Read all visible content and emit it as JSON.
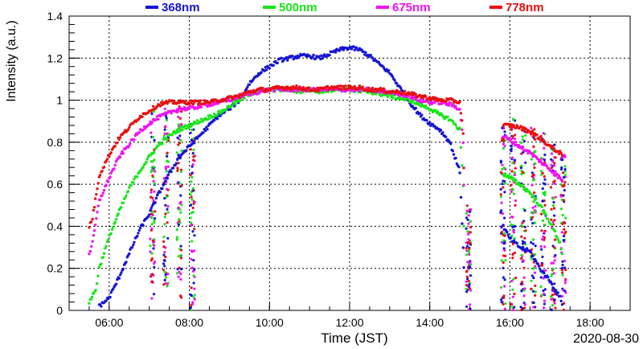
{
  "chart_data": {
    "type": "scatter",
    "title": "",
    "xlabel": "Time (JST)",
    "ylabel": "Intensity (a.u.)",
    "date_label": "2020-08-30",
    "xlim": [
      "05:00",
      "19:00"
    ],
    "ylim": [
      0,
      1.4
    ],
    "grid": true,
    "legend": "top",
    "x_ticks": [
      "06:00",
      "08:00",
      "10:00",
      "12:00",
      "14:00",
      "16:00",
      "18:00"
    ],
    "y_ticks": [
      "0",
      "0.2",
      "0.4",
      "0.6",
      "0.8",
      "1",
      "1.2",
      "1.4"
    ],
    "colors": {
      "368nm": "#1515d6",
      "500nm": "#19e619",
      "675nm": "#f013f0",
      "778nm": "#e81010"
    },
    "series": [
      {
        "name": "368nm",
        "color": "#1515d6",
        "points": [
          [
            "05:45",
            0.02
          ],
          [
            "06:00",
            0.06
          ],
          [
            "06:15",
            0.16
          ],
          [
            "06:30",
            0.27
          ],
          [
            "06:45",
            0.38
          ],
          [
            "07:00",
            0.46
          ],
          [
            "07:15",
            0.56
          ],
          [
            "07:30",
            0.65
          ],
          [
            "07:45",
            0.73
          ],
          [
            "08:00",
            0.78
          ],
          [
            "08:15",
            0.83
          ],
          [
            "08:30",
            0.88
          ],
          [
            "08:45",
            0.93
          ],
          [
            "09:00",
            0.96
          ],
          [
            "09:15",
            1.0
          ],
          [
            "09:30",
            1.08
          ],
          [
            "09:45",
            1.13
          ],
          [
            "10:00",
            1.16
          ],
          [
            "10:15",
            1.19
          ],
          [
            "10:30",
            1.2
          ],
          [
            "10:45",
            1.21
          ],
          [
            "11:00",
            1.21
          ],
          [
            "11:15",
            1.2
          ],
          [
            "11:30",
            1.22
          ],
          [
            "11:45",
            1.24
          ],
          [
            "12:00",
            1.25
          ],
          [
            "12:15",
            1.24
          ],
          [
            "12:30",
            1.21
          ],
          [
            "12:45",
            1.17
          ],
          [
            "13:00",
            1.13
          ],
          [
            "13:15",
            1.06
          ],
          [
            "13:30",
            0.99
          ],
          [
            "13:45",
            0.93
          ],
          [
            "14:00",
            0.89
          ],
          [
            "14:15",
            0.86
          ],
          [
            "14:30",
            0.8
          ],
          [
            "14:45",
            0.66
          ],
          [
            "14:50",
            0.3
          ],
          [
            "14:52",
            0.1
          ],
          [
            "15:50",
            0.4
          ],
          [
            "16:00",
            0.34
          ],
          [
            "16:15",
            0.3
          ],
          [
            "16:30",
            0.28
          ],
          [
            "16:45",
            0.2
          ],
          [
            "17:00",
            0.14
          ],
          [
            "17:15",
            0.06
          ],
          [
            "17:20",
            0.02
          ]
        ]
      },
      {
        "name": "500nm",
        "color": "#19e619",
        "points": [
          [
            "05:30",
            0.04
          ],
          [
            "05:40",
            0.1
          ],
          [
            "05:45",
            0.2
          ],
          [
            "06:00",
            0.35
          ],
          [
            "06:15",
            0.47
          ],
          [
            "06:30",
            0.58
          ],
          [
            "06:45",
            0.66
          ],
          [
            "07:00",
            0.73
          ],
          [
            "07:15",
            0.79
          ],
          [
            "07:30",
            0.83
          ],
          [
            "07:45",
            0.86
          ],
          [
            "08:00",
            0.88
          ],
          [
            "08:15",
            0.9
          ],
          [
            "08:30",
            0.92
          ],
          [
            "08:45",
            0.94
          ],
          [
            "09:00",
            0.97
          ],
          [
            "09:15",
            1.0
          ],
          [
            "09:30",
            1.03
          ],
          [
            "09:45",
            1.04
          ],
          [
            "10:00",
            1.05
          ],
          [
            "10:15",
            1.05
          ],
          [
            "10:30",
            1.05
          ],
          [
            "10:45",
            1.04
          ],
          [
            "11:00",
            1.05
          ],
          [
            "11:15",
            1.04
          ],
          [
            "11:30",
            1.05
          ],
          [
            "11:45",
            1.05
          ],
          [
            "12:00",
            1.05
          ],
          [
            "12:15",
            1.04
          ],
          [
            "12:30",
            1.04
          ],
          [
            "12:45",
            1.03
          ],
          [
            "13:00",
            1.02
          ],
          [
            "13:15",
            1.01
          ],
          [
            "13:30",
            1.0
          ],
          [
            "13:45",
            0.98
          ],
          [
            "14:00",
            0.96
          ],
          [
            "14:15",
            0.93
          ],
          [
            "14:30",
            0.91
          ],
          [
            "14:45",
            0.86
          ],
          [
            "14:50",
            0.6
          ],
          [
            "14:52",
            0.2
          ],
          [
            "15:50",
            0.65
          ],
          [
            "16:00",
            0.63
          ],
          [
            "16:15",
            0.6
          ],
          [
            "16:30",
            0.56
          ],
          [
            "16:45",
            0.5
          ],
          [
            "17:00",
            0.42
          ],
          [
            "17:15",
            0.32
          ],
          [
            "17:20",
            0.25
          ]
        ]
      },
      {
        "name": "675nm",
        "color": "#f013f0",
        "points": [
          [
            "05:30",
            0.27
          ],
          [
            "05:35",
            0.32
          ],
          [
            "05:45",
            0.52
          ],
          [
            "06:00",
            0.63
          ],
          [
            "06:15",
            0.73
          ],
          [
            "06:30",
            0.79
          ],
          [
            "06:45",
            0.85
          ],
          [
            "07:00",
            0.89
          ],
          [
            "07:15",
            0.92
          ],
          [
            "07:30",
            0.94
          ],
          [
            "07:45",
            0.96
          ],
          [
            "08:00",
            0.96
          ],
          [
            "08:15",
            0.97
          ],
          [
            "08:30",
            0.98
          ],
          [
            "08:45",
            0.99
          ],
          [
            "09:00",
            1.0
          ],
          [
            "09:15",
            1.02
          ],
          [
            "09:30",
            1.03
          ],
          [
            "09:45",
            1.04
          ],
          [
            "10:00",
            1.05
          ],
          [
            "10:15",
            1.05
          ],
          [
            "10:30",
            1.05
          ],
          [
            "10:45",
            1.05
          ],
          [
            "11:00",
            1.05
          ],
          [
            "11:15",
            1.05
          ],
          [
            "11:30",
            1.05
          ],
          [
            "11:45",
            1.05
          ],
          [
            "12:00",
            1.05
          ],
          [
            "12:15",
            1.05
          ],
          [
            "12:30",
            1.05
          ],
          [
            "12:45",
            1.04
          ],
          [
            "13:00",
            1.04
          ],
          [
            "13:15",
            1.03
          ],
          [
            "13:30",
            1.02
          ],
          [
            "13:45",
            1.0
          ],
          [
            "14:00",
            0.99
          ],
          [
            "14:15",
            0.99
          ],
          [
            "14:30",
            0.98
          ],
          [
            "14:45",
            0.96
          ],
          [
            "14:50",
            0.8
          ],
          [
            "14:52",
            0.4
          ],
          [
            "15:50",
            0.83
          ],
          [
            "16:00",
            0.81
          ],
          [
            "16:15",
            0.78
          ],
          [
            "16:30",
            0.75
          ],
          [
            "16:45",
            0.71
          ],
          [
            "17:00",
            0.67
          ],
          [
            "17:15",
            0.63
          ],
          [
            "17:20",
            0.6
          ]
        ]
      },
      {
        "name": "778nm",
        "color": "#e81010",
        "points": [
          [
            "05:30",
            0.4
          ],
          [
            "05:35",
            0.44
          ],
          [
            "05:45",
            0.64
          ],
          [
            "06:00",
            0.74
          ],
          [
            "06:15",
            0.82
          ],
          [
            "06:30",
            0.87
          ],
          [
            "06:45",
            0.92
          ],
          [
            "07:00",
            0.95
          ],
          [
            "07:15",
            0.98
          ],
          [
            "07:30",
            0.99
          ],
          [
            "07:45",
            0.99
          ],
          [
            "08:00",
            0.99
          ],
          [
            "08:15",
            0.99
          ],
          [
            "08:30",
            0.99
          ],
          [
            "08:45",
            1.0
          ],
          [
            "09:00",
            1.01
          ],
          [
            "09:15",
            1.02
          ],
          [
            "09:30",
            1.04
          ],
          [
            "09:45",
            1.05
          ],
          [
            "10:00",
            1.05
          ],
          [
            "10:15",
            1.06
          ],
          [
            "10:30",
            1.06
          ],
          [
            "10:45",
            1.06
          ],
          [
            "11:00",
            1.05
          ],
          [
            "11:15",
            1.05
          ],
          [
            "11:30",
            1.06
          ],
          [
            "11:45",
            1.06
          ],
          [
            "12:00",
            1.06
          ],
          [
            "12:15",
            1.06
          ],
          [
            "12:30",
            1.05
          ],
          [
            "12:45",
            1.05
          ],
          [
            "13:00",
            1.04
          ],
          [
            "13:15",
            1.04
          ],
          [
            "13:30",
            1.03
          ],
          [
            "13:45",
            1.02
          ],
          [
            "14:00",
            1.01
          ],
          [
            "14:15",
            1.0
          ],
          [
            "14:30",
            1.0
          ],
          [
            "14:45",
            0.99
          ],
          [
            "14:50",
            0.85
          ],
          [
            "14:52",
            0.5
          ],
          [
            "15:50",
            0.88
          ],
          [
            "16:00",
            0.88
          ],
          [
            "16:15",
            0.87
          ],
          [
            "16:30",
            0.85
          ],
          [
            "16:45",
            0.82
          ],
          [
            "17:00",
            0.78
          ],
          [
            "17:15",
            0.75
          ],
          [
            "17:20",
            0.72
          ]
        ]
      }
    ],
    "scatter_clusters": [
      {
        "center": "07:05",
        "ymin": 0.05,
        "ymax": 0.95
      },
      {
        "center": "07:25",
        "ymin": 0.1,
        "ymax": 1.0
      },
      {
        "center": "07:45",
        "ymin": 0.05,
        "ymax": 0.98
      },
      {
        "center": "08:05",
        "ymin": 0.0,
        "ymax": 0.96
      },
      {
        "center": "14:58",
        "ymin": 0.0,
        "ymax": 0.5
      },
      {
        "center": "15:50",
        "ymin": 0.0,
        "ymax": 0.9
      },
      {
        "center": "16:05",
        "ymin": 0.0,
        "ymax": 0.92
      },
      {
        "center": "16:20",
        "ymin": 0.0,
        "ymax": 0.9
      },
      {
        "center": "16:35",
        "ymin": 0.0,
        "ymax": 0.88
      },
      {
        "center": "16:50",
        "ymin": 0.0,
        "ymax": 0.85
      },
      {
        "center": "17:05",
        "ymin": 0.0,
        "ymax": 0.8
      },
      {
        "center": "17:20",
        "ymin": 0.0,
        "ymax": 0.75
      }
    ]
  }
}
